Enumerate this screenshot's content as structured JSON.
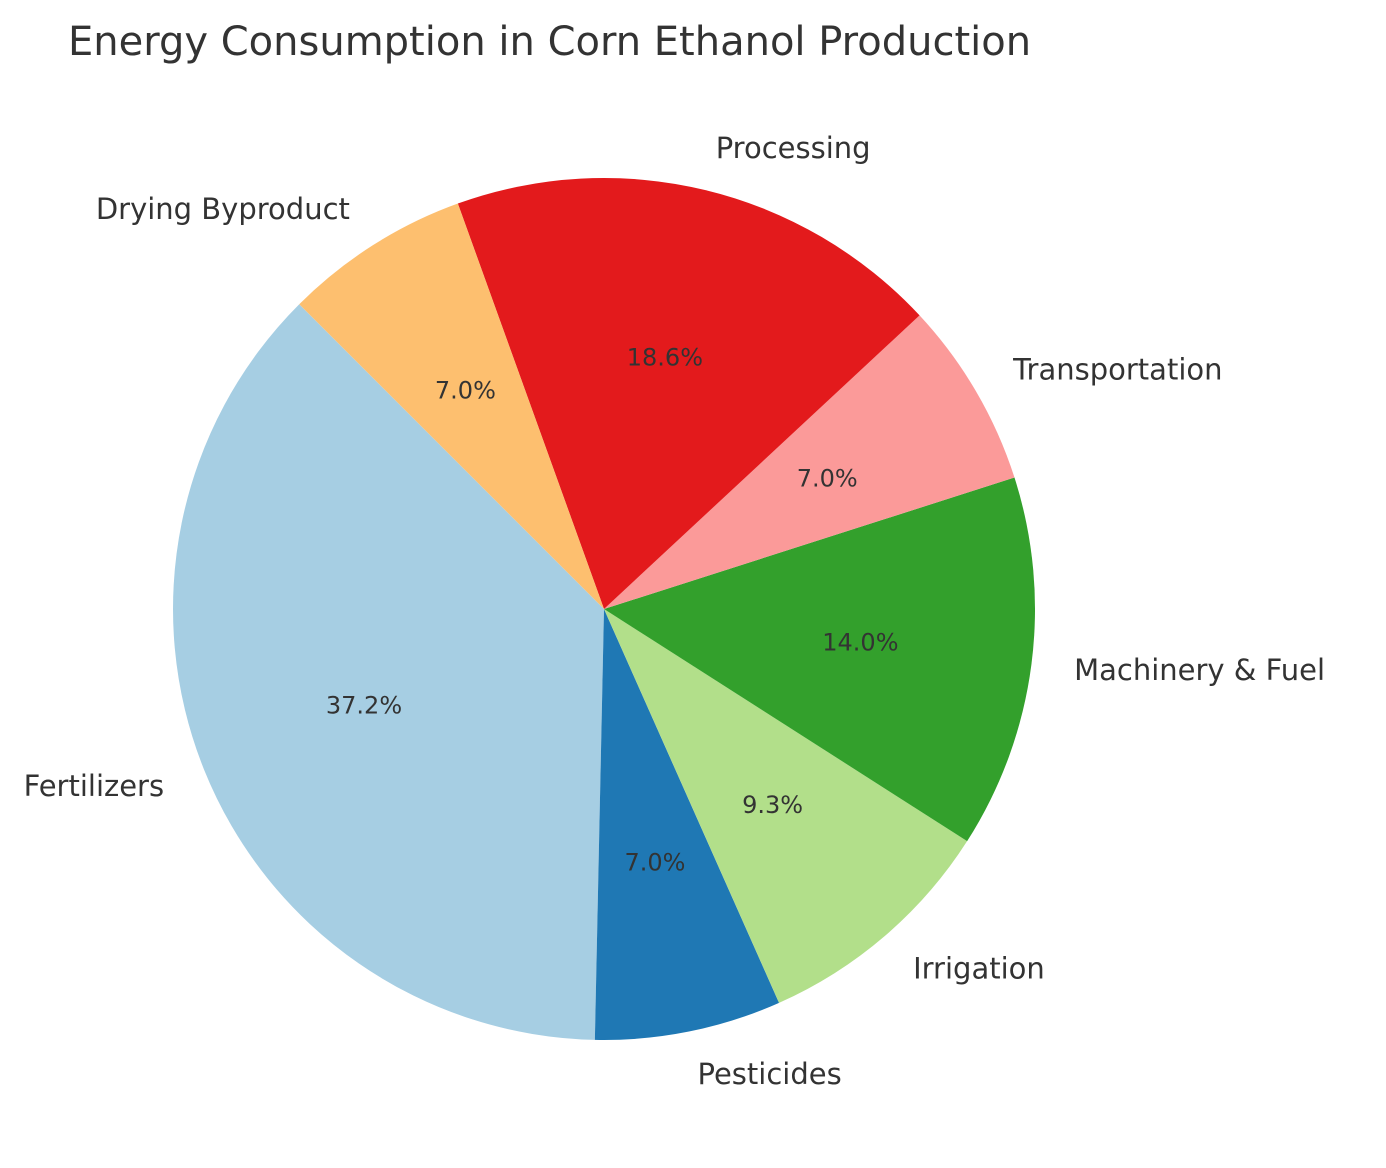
{
  "chart_data": {
    "type": "pie",
    "title": "Energy Consumption in Corn Ethanol Production",
    "start_angle_deg": 135,
    "direction": "counterclockwise",
    "legend": "none",
    "slices": [
      {
        "label": "Fertilizers",
        "value": 37.2,
        "pct_label": "37.2%",
        "color": "#a6cee3"
      },
      {
        "label": "Pesticides",
        "value": 7.0,
        "pct_label": "7.0%",
        "color": "#1f78b4"
      },
      {
        "label": "Irrigation",
        "value": 9.3,
        "pct_label": "9.3%",
        "color": "#b2df8a"
      },
      {
        "label": "Machinery & Fuel",
        "value": 14.0,
        "pct_label": "14.0%",
        "color": "#33a02c"
      },
      {
        "label": "Transportation",
        "value": 7.0,
        "pct_label": "7.0%",
        "color": "#fb9a99"
      },
      {
        "label": "Processing",
        "value": 18.6,
        "pct_label": "18.6%",
        "color": "#e31a1c"
      },
      {
        "label": "Drying Byproduct",
        "value": 7.0,
        "pct_label": "7.0%",
        "color": "#fdbf6f"
      }
    ]
  }
}
